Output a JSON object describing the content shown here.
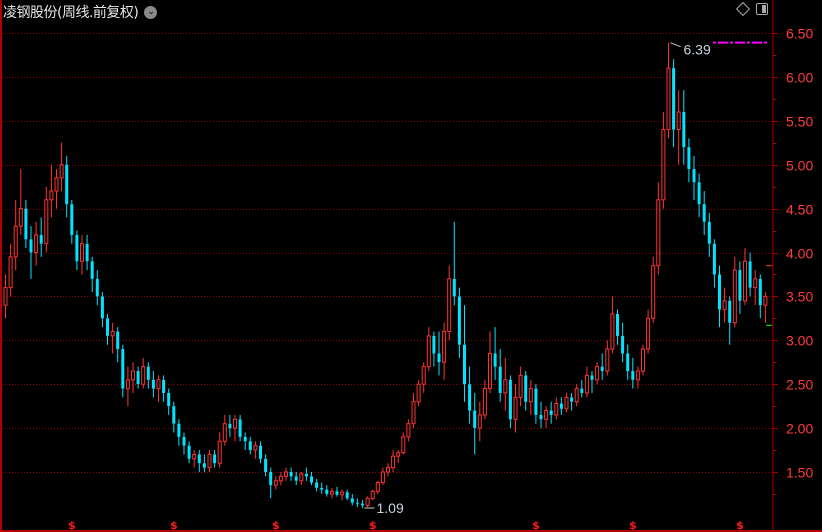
{
  "header": {
    "title": "凌钢股份(周线.前复权)",
    "chevron_icon": "chevron-down-circle-icon"
  },
  "toolbar": {
    "icons": [
      "diamond-icon",
      "panel-toggle-icon"
    ]
  },
  "colors": {
    "up": "#ff3232",
    "down": "#00e4ff",
    "grid": "#8b0000",
    "axis": "#b00000",
    "axis_label": "#ff3b3b",
    "max_line": "#ff00ff",
    "background": "#000000"
  },
  "chart_data": {
    "type": "candlestick",
    "interval": "weekly",
    "ylim": [
      1.0,
      6.7
    ],
    "yticks": [
      1.5,
      2.0,
      2.5,
      3.0,
      3.5,
      4.0,
      4.5,
      5.0,
      5.5,
      6.0,
      6.5
    ],
    "ytick_labels": [
      "1.50",
      "2.00",
      "2.50",
      "3.00",
      "3.50",
      "4.00",
      "4.50",
      "5.00",
      "5.50",
      "6.00",
      "6.50"
    ],
    "grid": true,
    "annotations": {
      "max_label": "6.39",
      "max_value": 6.39,
      "max_index": 130,
      "min_label": "1.09",
      "min_value": 1.09,
      "min_index": 70
    },
    "event_markers": {
      "glyph": "$",
      "indices": [
        13,
        33,
        53,
        72,
        104,
        123,
        144
      ]
    },
    "candles": [
      [
        3.4,
        3.75,
        3.25,
        3.6
      ],
      [
        3.6,
        4.1,
        3.5,
        3.95
      ],
      [
        3.95,
        4.6,
        3.8,
        4.3
      ],
      [
        4.3,
        4.95,
        4.2,
        4.5
      ],
      [
        4.5,
        4.6,
        4.05,
        4.15
      ],
      [
        4.15,
        4.3,
        3.7,
        4.0
      ],
      [
        4.0,
        4.35,
        3.85,
        4.2
      ],
      [
        4.2,
        4.4,
        3.95,
        4.1
      ],
      [
        4.1,
        4.75,
        4.0,
        4.6
      ],
      [
        4.6,
        5.0,
        4.4,
        4.7
      ],
      [
        4.7,
        4.95,
        4.5,
        4.85
      ],
      [
        4.85,
        5.25,
        4.7,
        5.0
      ],
      [
        5.0,
        5.1,
        4.4,
        4.55
      ],
      [
        4.55,
        4.6,
        4.1,
        4.2
      ],
      [
        4.2,
        4.25,
        3.8,
        3.9
      ],
      [
        3.9,
        4.2,
        3.75,
        4.1
      ],
      [
        4.1,
        4.2,
        3.8,
        3.9
      ],
      [
        3.9,
        3.95,
        3.55,
        3.7
      ],
      [
        3.7,
        3.8,
        3.4,
        3.5
      ],
      [
        3.5,
        3.55,
        3.15,
        3.25
      ],
      [
        3.25,
        3.3,
        2.95,
        3.05
      ],
      [
        3.05,
        3.2,
        2.85,
        3.1
      ],
      [
        3.1,
        3.15,
        2.75,
        2.9
      ],
      [
        2.9,
        2.95,
        2.35,
        2.45
      ],
      [
        2.45,
        2.7,
        2.25,
        2.55
      ],
      [
        2.55,
        2.75,
        2.4,
        2.65
      ],
      [
        2.65,
        2.7,
        2.45,
        2.5
      ],
      [
        2.5,
        2.8,
        2.45,
        2.7
      ],
      [
        2.7,
        2.75,
        2.45,
        2.55
      ],
      [
        2.55,
        2.65,
        2.35,
        2.45
      ],
      [
        2.45,
        2.6,
        2.3,
        2.55
      ],
      [
        2.55,
        2.6,
        2.3,
        2.4
      ],
      [
        2.4,
        2.45,
        2.15,
        2.25
      ],
      [
        2.25,
        2.3,
        1.95,
        2.05
      ],
      [
        2.05,
        2.1,
        1.8,
        1.9
      ],
      [
        1.9,
        1.95,
        1.7,
        1.8
      ],
      [
        1.8,
        1.85,
        1.6,
        1.65
      ],
      [
        1.65,
        1.75,
        1.55,
        1.7
      ],
      [
        1.7,
        1.75,
        1.5,
        1.6
      ],
      [
        1.6,
        1.7,
        1.5,
        1.55
      ],
      [
        1.55,
        1.75,
        1.5,
        1.7
      ],
      [
        1.7,
        1.75,
        1.55,
        1.6
      ],
      [
        1.6,
        1.95,
        1.55,
        1.85
      ],
      [
        1.85,
        2.15,
        1.8,
        2.05
      ],
      [
        2.05,
        2.15,
        1.9,
        2.0
      ],
      [
        2.0,
        2.15,
        1.85,
        2.1
      ],
      [
        2.1,
        2.15,
        1.85,
        1.9
      ],
      [
        1.9,
        1.95,
        1.75,
        1.85
      ],
      [
        1.85,
        1.9,
        1.7,
        1.75
      ],
      [
        1.75,
        1.85,
        1.65,
        1.8
      ],
      [
        1.8,
        1.85,
        1.6,
        1.65
      ],
      [
        1.65,
        1.7,
        1.45,
        1.5
      ],
      [
        1.5,
        1.55,
        1.2,
        1.35
      ],
      [
        1.35,
        1.45,
        1.3,
        1.4
      ],
      [
        1.4,
        1.5,
        1.35,
        1.45
      ],
      [
        1.45,
        1.55,
        1.4,
        1.5
      ],
      [
        1.5,
        1.55,
        1.4,
        1.45
      ],
      [
        1.45,
        1.5,
        1.35,
        1.4
      ],
      [
        1.4,
        1.5,
        1.35,
        1.48
      ],
      [
        1.48,
        1.55,
        1.4,
        1.45
      ],
      [
        1.45,
        1.5,
        1.35,
        1.38
      ],
      [
        1.38,
        1.42,
        1.28,
        1.32
      ],
      [
        1.32,
        1.38,
        1.25,
        1.3
      ],
      [
        1.3,
        1.35,
        1.22,
        1.25
      ],
      [
        1.25,
        1.32,
        1.2,
        1.28
      ],
      [
        1.28,
        1.33,
        1.22,
        1.24
      ],
      [
        1.24,
        1.3,
        1.18,
        1.27
      ],
      [
        1.27,
        1.3,
        1.18,
        1.2
      ],
      [
        1.2,
        1.25,
        1.12,
        1.15
      ],
      [
        1.15,
        1.2,
        1.1,
        1.14
      ],
      [
        1.14,
        1.18,
        1.09,
        1.12
      ],
      [
        1.12,
        1.22,
        1.1,
        1.2
      ],
      [
        1.2,
        1.3,
        1.18,
        1.28
      ],
      [
        1.28,
        1.4,
        1.25,
        1.38
      ],
      [
        1.38,
        1.55,
        1.35,
        1.5
      ],
      [
        1.5,
        1.6,
        1.45,
        1.55
      ],
      [
        1.55,
        1.75,
        1.5,
        1.68
      ],
      [
        1.68,
        1.75,
        1.6,
        1.72
      ],
      [
        1.72,
        1.95,
        1.7,
        1.9
      ],
      [
        1.9,
        2.1,
        1.85,
        2.05
      ],
      [
        2.05,
        2.4,
        2.0,
        2.3
      ],
      [
        2.3,
        2.55,
        2.25,
        2.5
      ],
      [
        2.5,
        2.75,
        2.4,
        2.7
      ],
      [
        2.7,
        3.15,
        2.65,
        3.05
      ],
      [
        3.05,
        3.1,
        2.7,
        2.85
      ],
      [
        2.85,
        3.1,
        2.6,
        2.75
      ],
      [
        2.75,
        3.2,
        2.55,
        3.1
      ],
      [
        3.1,
        3.85,
        3.0,
        3.7
      ],
      [
        3.7,
        4.35,
        3.4,
        3.5
      ],
      [
        3.5,
        3.6,
        2.8,
        2.95
      ],
      [
        2.95,
        3.4,
        2.3,
        2.5
      ],
      [
        2.5,
        2.7,
        2.05,
        2.2
      ],
      [
        2.2,
        2.4,
        1.7,
        2.0
      ],
      [
        2.0,
        2.3,
        1.85,
        2.15
      ],
      [
        2.15,
        2.55,
        2.1,
        2.45
      ],
      [
        2.45,
        3.1,
        2.4,
        2.85
      ],
      [
        2.85,
        3.15,
        2.55,
        2.7
      ],
      [
        2.7,
        2.9,
        2.3,
        2.4
      ],
      [
        2.4,
        2.8,
        2.2,
        2.55
      ],
      [
        2.55,
        2.6,
        2.0,
        2.1
      ],
      [
        2.1,
        2.5,
        1.95,
        2.35
      ],
      [
        2.35,
        2.7,
        2.25,
        2.6
      ],
      [
        2.6,
        2.65,
        2.2,
        2.3
      ],
      [
        2.3,
        2.55,
        2.15,
        2.45
      ],
      [
        2.45,
        2.5,
        2.05,
        2.15
      ],
      [
        2.15,
        2.3,
        2.0,
        2.1
      ],
      [
        2.1,
        2.25,
        2.0,
        2.2
      ],
      [
        2.2,
        2.3,
        2.05,
        2.15
      ],
      [
        2.15,
        2.35,
        2.1,
        2.28
      ],
      [
        2.28,
        2.35,
        2.15,
        2.22
      ],
      [
        2.22,
        2.4,
        2.18,
        2.35
      ],
      [
        2.35,
        2.4,
        2.2,
        2.3
      ],
      [
        2.3,
        2.5,
        2.25,
        2.45
      ],
      [
        2.45,
        2.55,
        2.35,
        2.4
      ],
      [
        2.4,
        2.7,
        2.35,
        2.6
      ],
      [
        2.6,
        2.65,
        2.4,
        2.55
      ],
      [
        2.55,
        2.75,
        2.5,
        2.7
      ],
      [
        2.7,
        2.85,
        2.55,
        2.65
      ],
      [
        2.65,
        3.0,
        2.6,
        2.9
      ],
      [
        2.9,
        3.5,
        2.85,
        3.3
      ],
      [
        3.3,
        3.35,
        2.95,
        3.05
      ],
      [
        3.05,
        3.2,
        2.75,
        2.85
      ],
      [
        2.85,
        2.95,
        2.55,
        2.65
      ],
      [
        2.65,
        2.8,
        2.45,
        2.55
      ],
      [
        2.55,
        2.7,
        2.45,
        2.65
      ],
      [
        2.65,
        2.95,
        2.6,
        2.9
      ],
      [
        2.9,
        3.35,
        2.85,
        3.25
      ],
      [
        3.25,
        3.95,
        3.2,
        3.85
      ],
      [
        3.85,
        4.8,
        3.75,
        4.6
      ],
      [
        4.6,
        5.6,
        4.5,
        5.4
      ],
      [
        5.4,
        6.39,
        5.3,
        6.1
      ],
      [
        6.1,
        6.2,
        5.2,
        5.4
      ],
      [
        5.4,
        5.85,
        5.0,
        5.6
      ],
      [
        5.6,
        5.85,
        5.0,
        5.2
      ],
      [
        5.2,
        5.3,
        4.8,
        4.95
      ],
      [
        4.95,
        5.1,
        4.6,
        4.8
      ],
      [
        4.8,
        4.9,
        4.4,
        4.55
      ],
      [
        4.55,
        4.7,
        4.2,
        4.35
      ],
      [
        4.35,
        4.45,
        3.95,
        4.1
      ],
      [
        4.1,
        4.15,
        3.6,
        3.75
      ],
      [
        3.75,
        3.85,
        3.15,
        3.35
      ],
      [
        3.35,
        3.6,
        3.2,
        3.45
      ],
      [
        3.45,
        3.5,
        2.95,
        3.2
      ],
      [
        3.2,
        3.95,
        3.15,
        3.8
      ],
      [
        3.8,
        3.9,
        3.3,
        3.45
      ],
      [
        3.45,
        4.05,
        3.4,
        3.9
      ],
      [
        3.9,
        4.0,
        3.5,
        3.6
      ],
      [
        3.6,
        3.8,
        3.4,
        3.7
      ],
      [
        3.7,
        3.75,
        3.25,
        3.4
      ],
      [
        3.4,
        3.55,
        3.2,
        3.5
      ]
    ]
  }
}
